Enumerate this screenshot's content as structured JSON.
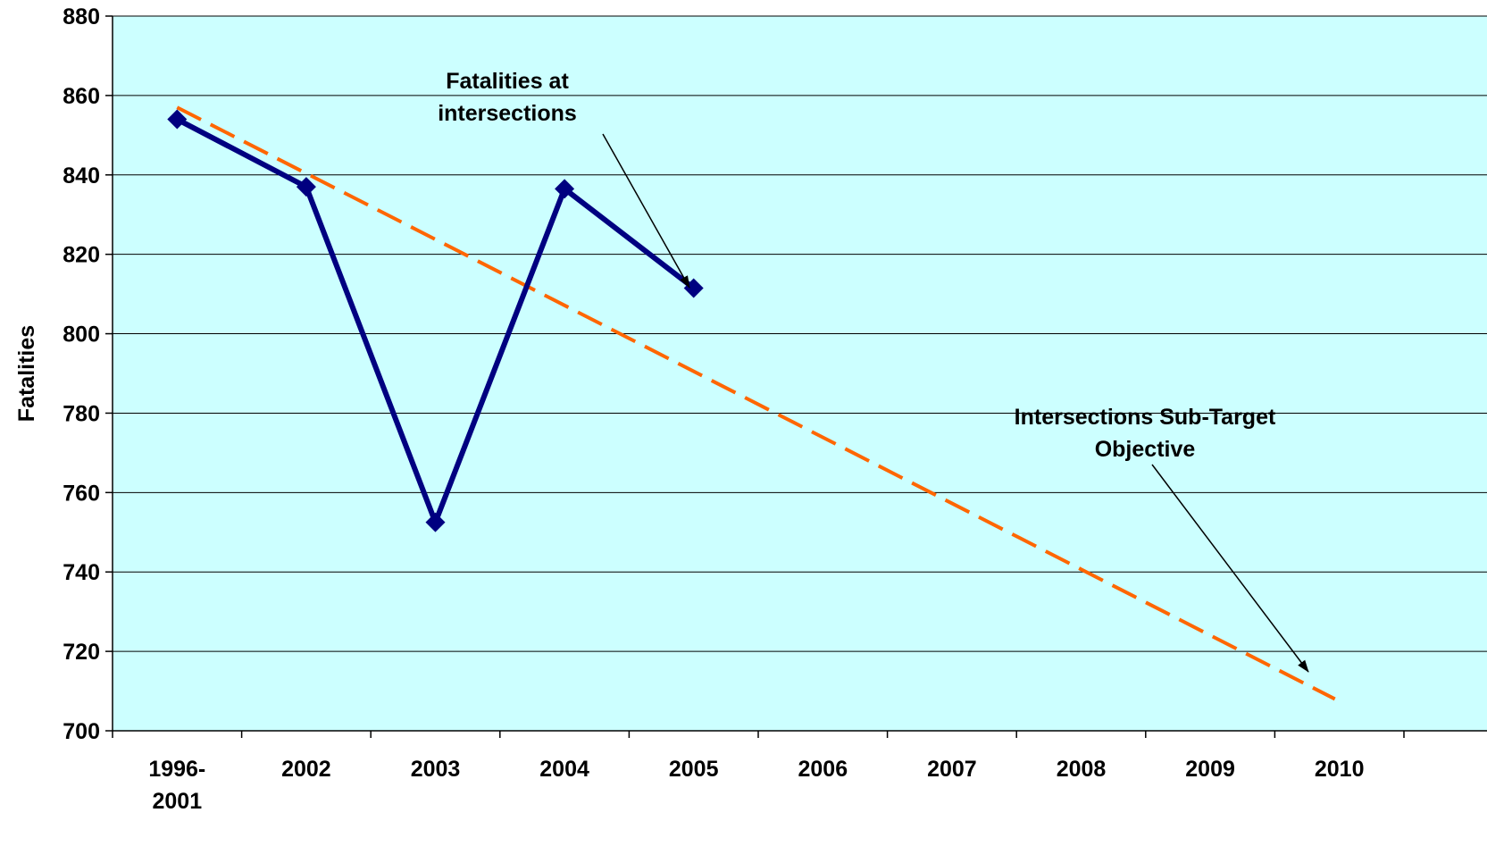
{
  "chart_data": {
    "type": "line",
    "title": "",
    "xlabel": "",
    "ylabel": "Fatalities",
    "ylim": [
      700,
      880
    ],
    "yticks": [
      700,
      720,
      740,
      760,
      780,
      800,
      820,
      840,
      860,
      880
    ],
    "categories": [
      [
        "1996-",
        "2001"
      ],
      [
        "2002"
      ],
      [
        "2003"
      ],
      [
        "2004"
      ],
      [
        "2005"
      ],
      [
        "2006"
      ],
      [
        "2007"
      ],
      [
        "2008"
      ],
      [
        "2009"
      ],
      [
        "2010"
      ]
    ],
    "grid": "horizontal",
    "background": "#ccffff",
    "series": [
      {
        "values": [
          854,
          837,
          752.5,
          836.5,
          811.5,
          null,
          null,
          null,
          null,
          null
        ],
        "color": "#000080",
        "style": "solid",
        "marker": "diamond"
      },
      {
        "values": [
          857,
          840.4,
          823.9,
          807.3,
          790.8,
          774.2,
          757.6,
          741.1,
          724.5,
          708
        ],
        "color": "#ff6600",
        "style": "dashed",
        "marker": "none"
      }
    ],
    "annotations": [
      {
        "lines": [
          "Fatalities at",
          "intersections"
        ],
        "points_to": "2005"
      },
      {
        "lines": [
          "Intersections Sub-Target",
          "Objective"
        ],
        "points_to": "2010"
      }
    ]
  }
}
